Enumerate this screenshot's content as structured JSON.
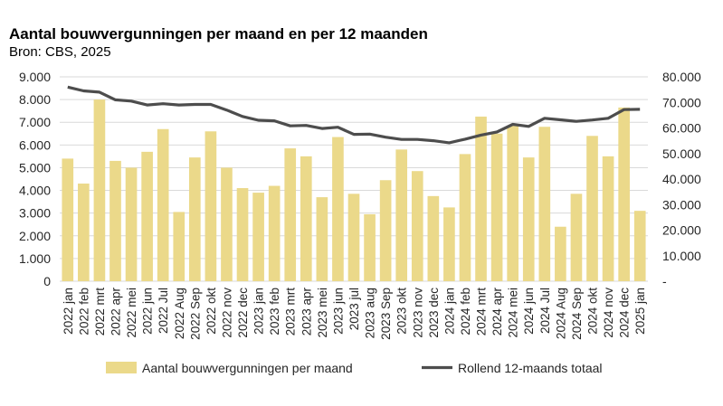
{
  "chart_data": {
    "type": "bar+line",
    "title": "Aantal bouwvergunningen per maand en per 12 maanden",
    "subtitle": "Bron: CBS, 2025",
    "categories": [
      "2022 jan",
      "2022 feb",
      "2022 mrt",
      "2022 apr",
      "2022 mei",
      "2022 jun",
      "2022 Jul",
      "2022 Aug",
      "2022 Sep",
      "2022 okt",
      "2022 nov",
      "2022 dec",
      "2023 jan",
      "2023 feb",
      "2023 mrt",
      "2023 apr",
      "2023 mei",
      "2023 jun",
      "2023 jul",
      "2023 aug",
      "2023 Sep",
      "2023 okt",
      "2023 nov",
      "2023 dec",
      "2024 jan",
      "2024 feb",
      "2024 mrt",
      "2024 apr",
      "2024 mei",
      "2024 jun",
      "2024 Jul",
      "2024 Aug",
      "2024 Sep",
      "2024 okt",
      "2024 nov",
      "2024 dec",
      "2025 jan"
    ],
    "series": [
      {
        "name": "Aantal bouwvergunningen per maand",
        "type": "bar",
        "axis": "left",
        "color": "#ebd98a",
        "values": [
          5400,
          4300,
          8000,
          5300,
          5000,
          5700,
          6700,
          3050,
          5450,
          6600,
          5000,
          4100,
          3900,
          4200,
          5850,
          5500,
          3700,
          6350,
          3850,
          2950,
          4450,
          5800,
          4850,
          3750,
          3250,
          5600,
          7250,
          6500,
          6850,
          5450,
          6800,
          2400,
          3850,
          6400,
          5500,
          7650,
          3100
        ]
      },
      {
        "name": "Rollend 12-maands totaal",
        "type": "line",
        "axis": "right",
        "color": "#4d4d4d",
        "values": [
          76000,
          74500,
          74000,
          71000,
          70500,
          69000,
          69500,
          69000,
          69200,
          69200,
          67000,
          64500,
          63000,
          62800,
          60800,
          61000,
          59800,
          60300,
          57500,
          57600,
          56400,
          55500,
          55500,
          55000,
          54200,
          55600,
          57200,
          58400,
          61400,
          60600,
          63800,
          63200,
          62600,
          63100,
          63800,
          67200,
          67300
        ]
      }
    ],
    "y_left": {
      "ylim": [
        0,
        9000
      ],
      "ticks": [
        "0",
        "1.000",
        "2.000",
        "3.000",
        "4.000",
        "5.000",
        "6.000",
        "7.000",
        "8.000",
        "9.000"
      ]
    },
    "y_right": {
      "ylim": [
        0,
        80000
      ],
      "ticks": [
        "-",
        "10.000",
        "20.000",
        "30.000",
        "40.000",
        "50.000",
        "60.000",
        "70.000",
        "80.000"
      ]
    },
    "grid": true,
    "legend_placement": "bottom"
  }
}
